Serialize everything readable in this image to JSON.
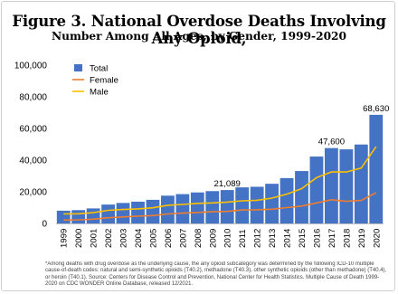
{
  "figure": {
    "title": "Figure 3. National Overdose Deaths Involving Any Opioid,",
    "subtitle": "Number Among All Ages, by Gender, 1999-2020",
    "footnote": "*Among deaths with drug overdose as the underlying cause, the any opioid subcategory was determined by the following ICD-10 multiple cause-of-death codes: natural and semi-synthetic opioids (T40.2), methadone (T40.3), other synthetic opioids (other than methadone) (T40.4), or heroin (T40.1).  Source: Centers for Disease Control and Prevention, National Center for Health Statistics. Multiple Cause of Death 1999-2020 on CDC WONDER Online Database, released 12/2021."
  },
  "colors": {
    "total": "#4472c4",
    "female": "#ed7d31",
    "male": "#ffc000"
  },
  "chart_data": {
    "type": "bar",
    "categories": [
      "1999",
      "2000",
      "2001",
      "2002",
      "2003",
      "2004",
      "2005",
      "2006",
      "2007",
      "2008",
      "2009",
      "2010",
      "2011",
      "2012",
      "2013",
      "2014",
      "2015",
      "2016",
      "2017",
      "2018",
      "2019",
      "2020"
    ],
    "series": [
      {
        "name": "Total",
        "kind": "bar",
        "values": [
          8050,
          8407,
          9496,
          11920,
          12940,
          13756,
          14918,
          17545,
          18516,
          19582,
          20422,
          21089,
          22784,
          23166,
          25052,
          28647,
          33091,
          42249,
          47600,
          46802,
          49860,
          68630
        ]
      },
      {
        "name": "Female",
        "kind": "line",
        "values": [
          2100,
          2300,
          2700,
          3600,
          4100,
          4600,
          5000,
          6000,
          6500,
          6900,
          7400,
          7600,
          8500,
          8600,
          9000,
          10000,
          11000,
          13000,
          15000,
          14000,
          14500,
          19500
        ]
      },
      {
        "name": "Male",
        "kind": "line",
        "values": [
          6000,
          6100,
          6800,
          8300,
          8800,
          9200,
          9900,
          11500,
          12000,
          12700,
          13000,
          13500,
          14300,
          14600,
          16000,
          18500,
          22000,
          29000,
          32500,
          32500,
          35000,
          48500
        ]
      }
    ],
    "data_labels": [
      {
        "category": "2010",
        "text": "21,089"
      },
      {
        "category": "2017",
        "text": "47,600"
      },
      {
        "category": "2020",
        "text": "68,630"
      }
    ],
    "y_ticks": [
      "0",
      "20,000",
      "40,000",
      "60,000",
      "80,000",
      "100,000"
    ],
    "ylim": [
      0,
      100000
    ],
    "legend_position": "top-left",
    "xlabel": "",
    "ylabel": ""
  }
}
